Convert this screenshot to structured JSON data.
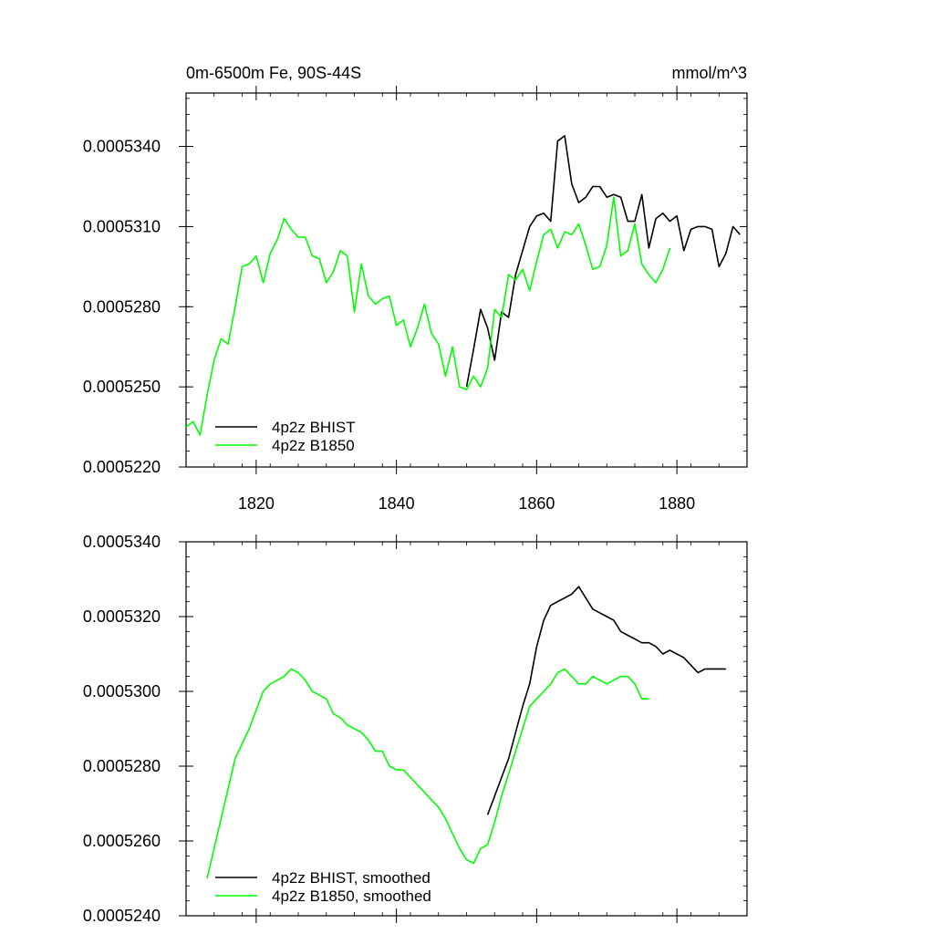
{
  "header": {
    "left_title": "0m-6500m Fe, 90S-44S",
    "right_title": "mmol/m^3"
  },
  "colors": {
    "bhist": "#000000",
    "b1850": "#00ff00"
  },
  "chart_data": [
    {
      "type": "line",
      "title": "0m-6500m Fe, 90S-44S",
      "units": "mmol/m^3",
      "xlim": [
        1810,
        1890
      ],
      "ylim": [
        0.000522,
        0.000536
      ],
      "x_ticks": [
        1820,
        1840,
        1860,
        1880
      ],
      "y_ticks": [
        0.000522,
        0.000525,
        0.000528,
        0.000531,
        0.000534
      ],
      "y_tick_labels": [
        "0.0005220",
        "0.0005250",
        "0.0005280",
        "0.0005310",
        "0.0005340"
      ],
      "grid": false,
      "legend_position": "bottom-left",
      "series": [
        {
          "name": "4p2z BHIST",
          "color": "#000000",
          "x": [
            1850,
            1851,
            1852,
            1853,
            1854,
            1855,
            1856,
            1857,
            1858,
            1859,
            1860,
            1861,
            1862,
            1863,
            1864,
            1865,
            1866,
            1867,
            1868,
            1869,
            1870,
            1871,
            1872,
            1873,
            1874,
            1875,
            1876,
            1877,
            1878,
            1879,
            1880,
            1881,
            1882,
            1883,
            1884,
            1885,
            1886,
            1887,
            1888,
            1889
          ],
          "y": [
            0.000525,
            0.0005264,
            0.0005279,
            0.0005272,
            0.000526,
            0.0005278,
            0.0005276,
            0.0005292,
            0.0005301,
            0.000531,
            0.0005314,
            0.0005315,
            0.0005312,
            0.0005342,
            0.0005344,
            0.0005326,
            0.0005319,
            0.0005321,
            0.0005325,
            0.0005325,
            0.0005321,
            0.0005322,
            0.0005321,
            0.0005312,
            0.0005312,
            0.0005322,
            0.0005302,
            0.0005313,
            0.0005315,
            0.0005312,
            0.0005314,
            0.0005301,
            0.0005309,
            0.000531,
            0.000531,
            0.0005309,
            0.0005295,
            0.00053,
            0.000531,
            0.0005307
          ]
        },
        {
          "name": "4p2z B1850",
          "color": "#00ff00",
          "x": [
            1810,
            1811,
            1812,
            1813,
            1814,
            1815,
            1816,
            1817,
            1818,
            1819,
            1820,
            1821,
            1822,
            1823,
            1824,
            1825,
            1826,
            1827,
            1828,
            1829,
            1830,
            1831,
            1832,
            1833,
            1834,
            1835,
            1836,
            1837,
            1838,
            1839,
            1840,
            1841,
            1842,
            1843,
            1844,
            1845,
            1846,
            1847,
            1848,
            1849,
            1850,
            1851,
            1852,
            1853,
            1854,
            1855,
            1856,
            1857,
            1858,
            1859,
            1860,
            1861,
            1862,
            1863,
            1864,
            1865,
            1866,
            1867,
            1868,
            1869,
            1870,
            1871,
            1872,
            1873,
            1874,
            1875,
            1876,
            1877,
            1878,
            1879
          ],
          "y": [
            0.0005235,
            0.0005237,
            0.0005232,
            0.0005247,
            0.000526,
            0.0005268,
            0.0005266,
            0.000528,
            0.0005295,
            0.0005296,
            0.0005299,
            0.0005289,
            0.00053,
            0.0005305,
            0.0005313,
            0.0005309,
            0.0005306,
            0.0005306,
            0.0005299,
            0.0005298,
            0.0005289,
            0.0005293,
            0.0005301,
            0.0005299,
            0.0005278,
            0.0005296,
            0.0005284,
            0.0005281,
            0.0005283,
            0.0005284,
            0.0005273,
            0.0005275,
            0.0005265,
            0.0005272,
            0.0005281,
            0.000527,
            0.0005266,
            0.0005254,
            0.0005265,
            0.000525,
            0.0005249,
            0.0005254,
            0.000525,
            0.0005257,
            0.0005279,
            0.0005276,
            0.0005292,
            0.000529,
            0.0005294,
            0.0005286,
            0.0005297,
            0.0005307,
            0.0005309,
            0.0005302,
            0.0005308,
            0.0005307,
            0.0005311,
            0.0005303,
            0.0005294,
            0.0005295,
            0.0005303,
            0.0005321,
            0.0005299,
            0.0005301,
            0.0005311,
            0.0005296,
            0.0005292,
            0.0005289,
            0.0005294,
            0.0005302
          ]
        }
      ]
    },
    {
      "type": "line",
      "xlim": [
        1810,
        1890
      ],
      "ylim": [
        0.000524,
        0.000534
      ],
      "x_ticks": [
        1820,
        1840,
        1860,
        1880
      ],
      "y_ticks": [
        0.000524,
        0.000526,
        0.000528,
        0.00053,
        0.000532,
        0.000534
      ],
      "y_tick_labels": [
        "0.0005240",
        "0.0005260",
        "0.0005280",
        "0.0005300",
        "0.0005320",
        "0.0005340"
      ],
      "grid": false,
      "legend_position": "bottom-left",
      "series": [
        {
          "name": "4p2z BHIST, smoothed",
          "color": "#000000",
          "x": [
            1853,
            1854,
            1855,
            1856,
            1857,
            1858,
            1859,
            1860,
            1861,
            1862,
            1863,
            1864,
            1865,
            1866,
            1867,
            1868,
            1869,
            1870,
            1871,
            1872,
            1873,
            1874,
            1875,
            1876,
            1877,
            1878,
            1879,
            1880,
            1881,
            1882,
            1883,
            1884,
            1885,
            1886,
            1887
          ],
          "y": [
            0.0005267,
            0.0005272,
            0.0005277,
            0.0005282,
            0.0005289,
            0.0005296,
            0.0005302,
            0.0005312,
            0.0005319,
            0.0005323,
            0.0005324,
            0.0005325,
            0.0005326,
            0.0005328,
            0.0005325,
            0.0005322,
            0.0005321,
            0.000532,
            0.0005319,
            0.0005316,
            0.0005315,
            0.0005314,
            0.0005313,
            0.0005313,
            0.0005312,
            0.000531,
            0.0005311,
            0.000531,
            0.0005309,
            0.0005307,
            0.0005305,
            0.0005306,
            0.0005306,
            0.0005306,
            0.0005306
          ]
        },
        {
          "name": "4p2z B1850, smoothed",
          "color": "#00ff00",
          "x": [
            1813,
            1814,
            1815,
            1816,
            1817,
            1818,
            1819,
            1820,
            1821,
            1822,
            1823,
            1824,
            1825,
            1826,
            1827,
            1828,
            1829,
            1830,
            1831,
            1832,
            1833,
            1834,
            1835,
            1836,
            1837,
            1838,
            1839,
            1840,
            1841,
            1842,
            1843,
            1844,
            1845,
            1846,
            1847,
            1848,
            1849,
            1850,
            1851,
            1852,
            1853,
            1854,
            1855,
            1856,
            1857,
            1858,
            1859,
            1860,
            1861,
            1862,
            1863,
            1864,
            1865,
            1866,
            1867,
            1868,
            1869,
            1870,
            1871,
            1872,
            1873,
            1874,
            1875,
            1876
          ],
          "y": [
            0.000525,
            0.0005258,
            0.0005266,
            0.0005274,
            0.0005282,
            0.0005286,
            0.000529,
            0.0005295,
            0.00053,
            0.0005302,
            0.0005303,
            0.0005304,
            0.0005306,
            0.0005305,
            0.0005303,
            0.00053,
            0.0005299,
            0.0005298,
            0.0005294,
            0.0005293,
            0.0005291,
            0.000529,
            0.0005289,
            0.0005287,
            0.0005284,
            0.0005284,
            0.000528,
            0.0005279,
            0.0005279,
            0.0005277,
            0.0005275,
            0.0005273,
            0.0005271,
            0.0005269,
            0.0005266,
            0.0005262,
            0.0005258,
            0.0005255,
            0.0005254,
            0.0005258,
            0.0005259,
            0.0005265,
            0.0005272,
            0.0005278,
            0.0005284,
            0.000529,
            0.0005296,
            0.0005298,
            0.00053,
            0.0005302,
            0.0005305,
            0.0005306,
            0.0005304,
            0.0005302,
            0.0005302,
            0.0005304,
            0.0005303,
            0.0005302,
            0.0005303,
            0.0005304,
            0.0005304,
            0.0005302,
            0.0005298,
            0.0005298
          ]
        }
      ]
    }
  ]
}
